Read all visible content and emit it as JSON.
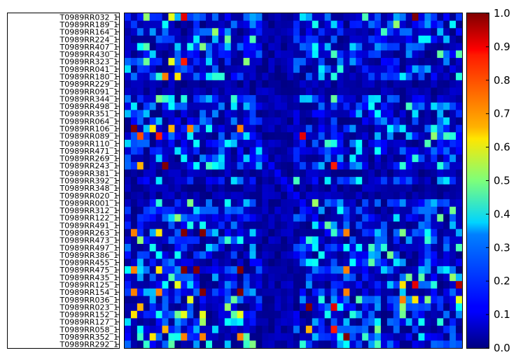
{
  "chart_data": {
    "type": "heatmap",
    "title": "",
    "xlabel": "",
    "ylabel": "",
    "colormap": "jet",
    "value_range": [
      0.0,
      1.0
    ],
    "row_labels": [
      "T0989RR032_1",
      "T0989RR189_1",
      "T0989RR164_1",
      "T0989RR224_1",
      "T0989RR407_1",
      "T0989RR430_1",
      "T0989RR323_1",
      "T0989RR041_1",
      "T0989RR180_1",
      "T0989RR229_1",
      "T0989RR091_1",
      "T0989RR344_1",
      "T0989RR498_1",
      "T0989RR351_1",
      "T0989RR064_1",
      "T0989RR106_1",
      "T0989RR089_1",
      "T0989RR110_1",
      "T0989RR471_1",
      "T0989RR269_1",
      "T0989RR243_1",
      "T0989RR381_1",
      "T0989RR392_1",
      "T0989RR348_1",
      "T0989RR020_1",
      "T0989RR001_1",
      "T0989RR312_1",
      "T0989RR122_1",
      "T0989RR491_1",
      "T0989RR263_1",
      "T0989RR473_1",
      "T0989RR497_1",
      "T0989RR386_1",
      "T0989RR455_1",
      "T0989RR475_1",
      "T0989RR435_1",
      "T0989RR125_1",
      "T0989RR154_1",
      "T0989RR036_1",
      "T0989RR023_1",
      "T0989RR152_1",
      "T0989RR127_1",
      "T0989RR058_1",
      "T0989RR352_1",
      "T0989RR292_1"
    ],
    "colorbar_ticks": [
      "0.0",
      "0.1",
      "0.2",
      "0.3",
      "0.4",
      "0.5",
      "0.6",
      "0.7",
      "0.8",
      "0.9",
      "1.0"
    ],
    "highlights": [
      {
        "row": 0,
        "col": 7,
        "value": 0.6
      },
      {
        "row": 0,
        "col": 9,
        "value": 0.9
      },
      {
        "row": 0,
        "col": 46,
        "value": 1.0
      },
      {
        "row": 6,
        "col": 7,
        "value": 0.6
      },
      {
        "row": 6,
        "col": 9,
        "value": 0.85
      },
      {
        "row": 8,
        "col": 6,
        "value": 0.75
      },
      {
        "row": 8,
        "col": 8,
        "value": 0.65
      },
      {
        "row": 15,
        "col": 1,
        "value": 1.0
      },
      {
        "row": 15,
        "col": 4,
        "value": 0.65
      },
      {
        "row": 15,
        "col": 7,
        "value": 0.7
      },
      {
        "row": 15,
        "col": 10,
        "value": 0.75
      },
      {
        "row": 15,
        "col": 18,
        "value": 0.75
      },
      {
        "row": 16,
        "col": 2,
        "value": 0.8
      },
      {
        "row": 16,
        "col": 5,
        "value": 0.85
      },
      {
        "row": 16,
        "col": 28,
        "value": 0.9
      },
      {
        "row": 20,
        "col": 2,
        "value": 0.7
      },
      {
        "row": 20,
        "col": 6,
        "value": 1.0
      },
      {
        "row": 20,
        "col": 33,
        "value": 0.85
      },
      {
        "row": 29,
        "col": 1,
        "value": 0.75
      },
      {
        "row": 29,
        "col": 5,
        "value": 0.65
      },
      {
        "row": 29,
        "col": 9,
        "value": 1.0
      },
      {
        "row": 29,
        "col": 12,
        "value": 1.0
      },
      {
        "row": 29,
        "col": 35,
        "value": 0.75
      },
      {
        "row": 34,
        "col": 1,
        "value": 0.75
      },
      {
        "row": 34,
        "col": 5,
        "value": 0.65
      },
      {
        "row": 34,
        "col": 9,
        "value": 1.0
      },
      {
        "row": 34,
        "col": 11,
        "value": 1.0
      },
      {
        "row": 34,
        "col": 18,
        "value": 1.0
      },
      {
        "row": 34,
        "col": 35,
        "value": 0.75
      },
      {
        "row": 36,
        "col": 8,
        "value": 0.6
      },
      {
        "row": 36,
        "col": 44,
        "value": 0.65
      },
      {
        "row": 36,
        "col": 46,
        "value": 0.9
      },
      {
        "row": 36,
        "col": 53,
        "value": 0.95
      },
      {
        "row": 37,
        "col": 1,
        "value": 0.75
      },
      {
        "row": 37,
        "col": 5,
        "value": 0.75
      },
      {
        "row": 37,
        "col": 12,
        "value": 1.0
      },
      {
        "row": 37,
        "col": 18,
        "value": 1.0
      },
      {
        "row": 37,
        "col": 35,
        "value": 0.75
      },
      {
        "row": 38,
        "col": 10,
        "value": 0.6
      },
      {
        "row": 38,
        "col": 44,
        "value": 0.75
      },
      {
        "row": 38,
        "col": 46,
        "value": 0.65
      },
      {
        "row": 38,
        "col": 53,
        "value": 0.6
      },
      {
        "row": 39,
        "col": 2,
        "value": 0.7
      },
      {
        "row": 39,
        "col": 29,
        "value": 1.0
      },
      {
        "row": 39,
        "col": 33,
        "value": 0.9
      },
      {
        "row": 40,
        "col": 1,
        "value": 0.65
      },
      {
        "row": 40,
        "col": 9,
        "value": 0.6
      },
      {
        "row": 40,
        "col": 12,
        "value": 0.6
      },
      {
        "row": 40,
        "col": 18,
        "value": 0.6
      },
      {
        "row": 42,
        "col": 6,
        "value": 0.7
      },
      {
        "row": 42,
        "col": 29,
        "value": 0.7
      },
      {
        "row": 42,
        "col": 33,
        "value": 0.85
      },
      {
        "row": 43,
        "col": 4,
        "value": 0.65
      },
      {
        "row": 43,
        "col": 9,
        "value": 0.75
      },
      {
        "row": 43,
        "col": 12,
        "value": 0.75
      },
      {
        "row": 43,
        "col": 18,
        "value": 0.75
      },
      {
        "row": 43,
        "col": 35,
        "value": 1.0
      }
    ]
  }
}
